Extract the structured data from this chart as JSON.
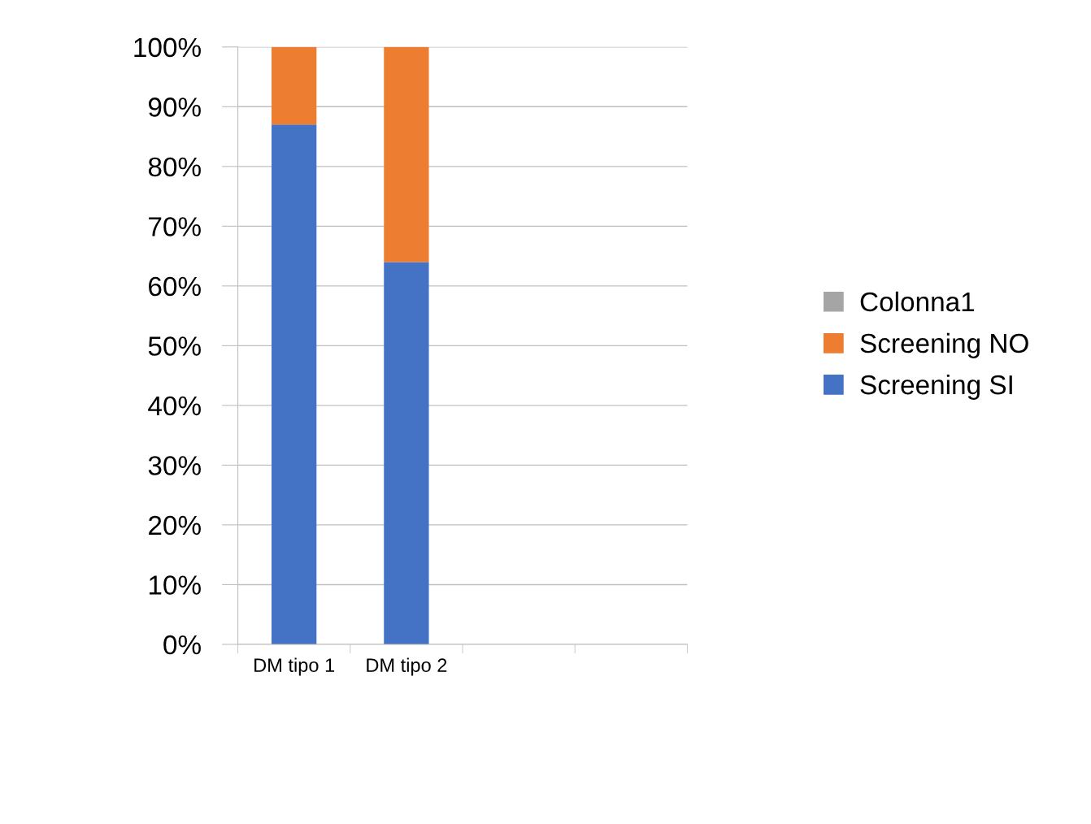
{
  "chart_data": {
    "type": "bar",
    "stacked": true,
    "categories": [
      "DM tipo 1",
      "DM tipo 2",
      null,
      null
    ],
    "series": [
      {
        "name": "Screening SI",
        "color": "#4472c4",
        "values": [
          87,
          64,
          null,
          null
        ]
      },
      {
        "name": "Screening NO",
        "color": "#ed7d31",
        "values": [
          13,
          36,
          null,
          null
        ]
      },
      {
        "name": "Colonna1",
        "color": "#a5a5a5",
        "values": [
          null,
          null,
          null,
          null
        ]
      }
    ],
    "ylim": [
      0,
      100
    ],
    "yticks": [
      {
        "value": 0,
        "label": "0%"
      },
      {
        "value": 10,
        "label": "10%"
      },
      {
        "value": 20,
        "label": "20%"
      },
      {
        "value": 30,
        "label": "30%"
      },
      {
        "value": 40,
        "label": "40%"
      },
      {
        "value": 50,
        "label": "50%"
      },
      {
        "value": 60,
        "label": "60%"
      },
      {
        "value": 70,
        "label": "70%"
      },
      {
        "value": 80,
        "label": "80%"
      },
      {
        "value": 90,
        "label": "90%"
      },
      {
        "value": 100,
        "label": "100%"
      }
    ],
    "grid": "y",
    "legend": "right"
  }
}
